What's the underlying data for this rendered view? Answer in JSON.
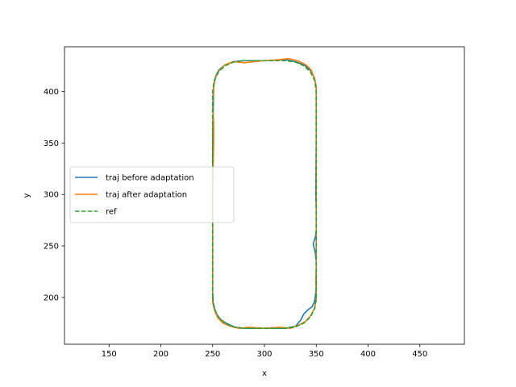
{
  "chart_data": {
    "type": "line",
    "title": "",
    "xlabel": "x",
    "ylabel": "y",
    "xlim": [
      107,
      493
    ],
    "ylim": [
      154.5,
      443.5
    ],
    "xticks": [
      150,
      200,
      250,
      300,
      350,
      400,
      450
    ],
    "yticks": [
      200,
      250,
      300,
      350,
      400
    ],
    "grid": false,
    "legend_position": "center-left",
    "series": [
      {
        "name": "traj before adaptation",
        "color": "#1f77b4",
        "style": "solid",
        "x": [
          250,
          250,
          251,
          253,
          256,
          262,
          270,
          280,
          300,
          320,
          330,
          338,
          344,
          348,
          350,
          350,
          349.5,
          350,
          350,
          350,
          349,
          347,
          349,
          350,
          350,
          349,
          348,
          346,
          342,
          338,
          335,
          330,
          320,
          300,
          280,
          272,
          265,
          258,
          253,
          250.5,
          250,
          250
        ],
        "y": [
          250,
          350,
          405,
          415,
          421,
          426,
          429,
          430,
          430,
          431,
          429,
          426,
          421,
          414,
          405,
          350,
          300,
          285,
          275,
          265,
          258,
          252,
          244,
          235,
          210,
          200,
          195,
          191,
          188,
          184,
          178,
          172,
          170,
          170,
          170,
          171,
          174,
          178,
          185,
          195,
          205,
          250
        ]
      },
      {
        "name": "traj after adaptation",
        "color": "#ff7f0e",
        "style": "solid",
        "x": [
          250,
          250,
          251,
          251,
          250,
          250.5,
          252,
          256,
          262,
          270,
          280,
          300,
          315,
          323,
          332,
          340,
          345,
          348,
          350,
          350,
          350,
          350,
          350,
          349.5,
          350,
          350,
          348,
          345,
          340,
          333,
          325,
          315,
          300,
          285,
          275,
          267,
          260,
          255,
          252,
          250,
          250
        ],
        "y": [
          200,
          300,
          350,
          370,
          385,
          398,
          412,
          420,
          426,
          429,
          428,
          430,
          431,
          432,
          430,
          426,
          421,
          414,
          405,
          380,
          300,
          250,
          230,
          215,
          205,
          197,
          189,
          183,
          177,
          173,
          170,
          171,
          170,
          171,
          170,
          172,
          175,
          180,
          187,
          195,
          200
        ]
      },
      {
        "name": "ref",
        "color": "#2ca02c",
        "style": "dashed",
        "x": [
          250,
          250,
          251.4,
          255.6,
          262.1,
          270.3,
          280,
          320,
          329.7,
          337.9,
          344.4,
          348.6,
          350,
          350,
          348.6,
          344.4,
          337.9,
          329.7,
          320,
          280,
          270.3,
          262.1,
          255.6,
          251.4,
          250
        ],
        "y": [
          200,
          400,
          410.4,
          419,
          425.1,
          428.7,
          430,
          430,
          428.7,
          425.1,
          419,
          410.4,
          400,
          200,
          189.6,
          181,
          174.9,
          171.3,
          170,
          170,
          171.3,
          174.9,
          181,
          189.6,
          200
        ]
      }
    ]
  }
}
